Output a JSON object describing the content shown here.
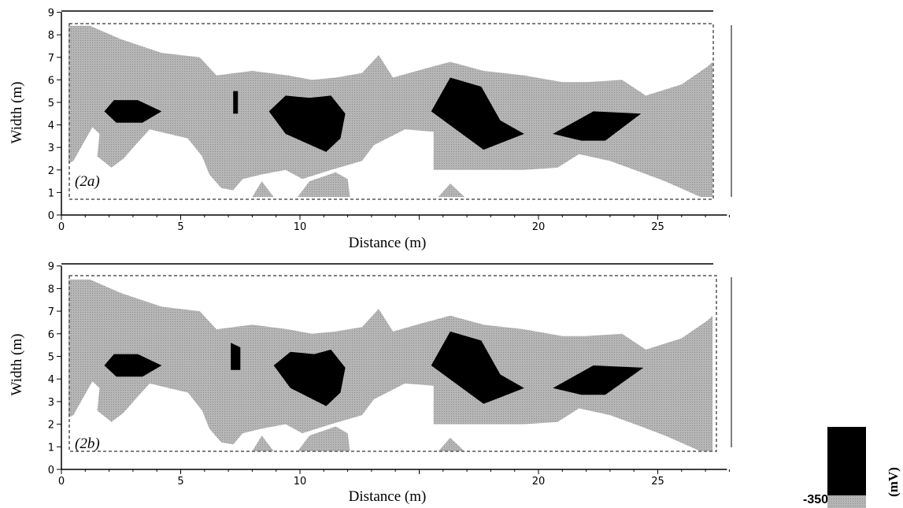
{
  "chart_data": [
    {
      "type": "contour",
      "panel_label": "(2a)",
      "xlabel": "Distance (m)",
      "ylabel": "Width (m)",
      "xlim": [
        0,
        28
      ],
      "ylim": [
        0,
        9
      ],
      "xticks": [
        0,
        5,
        10,
        20,
        25
      ],
      "yticks": [
        0,
        1,
        2,
        3,
        4,
        5,
        6,
        7,
        8,
        9
      ],
      "survey_area": {
        "x": [
          0.3,
          27.3
        ],
        "y": [
          0.8,
          8.4
        ]
      },
      "colors": {
        "black_zone": "#000000",
        "grey_zone": "#b0b0b0",
        "background": "#ffffff"
      },
      "black_zones": [
        [
          [
            1.8,
            4.6
          ],
          [
            2.2,
            5.1
          ],
          [
            3.2,
            5.1
          ],
          [
            4.2,
            4.6
          ],
          [
            3.4,
            4.1
          ],
          [
            2.3,
            4.1
          ]
        ],
        [
          [
            7.2,
            5.5
          ],
          [
            7.4,
            5.5
          ],
          [
            7.4,
            4.5
          ],
          [
            7.2,
            4.5
          ]
        ],
        [
          [
            8.7,
            4.6
          ],
          [
            9.4,
            5.3
          ],
          [
            10.4,
            5.2
          ],
          [
            11.3,
            5.3
          ],
          [
            11.9,
            4.5
          ],
          [
            11.7,
            3.4
          ],
          [
            11.1,
            2.8
          ],
          [
            9.4,
            3.6
          ]
        ],
        [
          [
            15.5,
            4.6
          ],
          [
            16.3,
            6.1
          ],
          [
            17.6,
            5.7
          ],
          [
            18.4,
            4.2
          ],
          [
            19.4,
            3.6
          ],
          [
            17.7,
            2.9
          ]
        ],
        [
          [
            20.6,
            3.6
          ],
          [
            22.3,
            4.6
          ],
          [
            24.3,
            4.5
          ],
          [
            22.8,
            3.3
          ],
          [
            21.8,
            3.3
          ]
        ]
      ],
      "grey_zone": [
        [
          0.3,
          8.4
        ],
        [
          1.2,
          8.4
        ],
        [
          2.5,
          7.8
        ],
        [
          4.2,
          7.2
        ],
        [
          5.8,
          7.0
        ],
        [
          6.5,
          6.2
        ],
        [
          8.0,
          6.4
        ],
        [
          9.5,
          6.2
        ],
        [
          10.5,
          6.0
        ],
        [
          11.5,
          6.1
        ],
        [
          12.6,
          6.3
        ],
        [
          13.3,
          7.1
        ],
        [
          13.9,
          6.1
        ],
        [
          14.9,
          6.4
        ],
        [
          16.3,
          6.8
        ],
        [
          17.7,
          6.4
        ],
        [
          19.4,
          6.2
        ],
        [
          21.0,
          5.9
        ],
        [
          22.0,
          5.9
        ],
        [
          23.5,
          6.0
        ],
        [
          24.5,
          5.3
        ],
        [
          26.0,
          5.8
        ],
        [
          27.1,
          6.6
        ],
        [
          27.3,
          6.8
        ],
        [
          27.3,
          0.8
        ],
        [
          26.8,
          0.8
        ],
        [
          25.3,
          1.5
        ],
        [
          24.3,
          1.9
        ],
        [
          23.0,
          2.4
        ],
        [
          21.7,
          2.7
        ],
        [
          20.8,
          2.1
        ],
        [
          19.4,
          2.0
        ],
        [
          17.0,
          2.0
        ],
        [
          15.6,
          2.0
        ],
        [
          15.6,
          3.7
        ],
        [
          14.4,
          3.8
        ],
        [
          13.1,
          3.1
        ],
        [
          12.6,
          2.4
        ],
        [
          11.3,
          2.0
        ],
        [
          10.1,
          1.6
        ],
        [
          9.4,
          2.0
        ],
        [
          8.4,
          1.8
        ],
        [
          7.6,
          1.6
        ],
        [
          7.2,
          1.1
        ],
        [
          6.7,
          1.2
        ],
        [
          6.2,
          1.8
        ],
        [
          5.9,
          2.6
        ],
        [
          5.3,
          3.4
        ],
        [
          4.5,
          3.6
        ],
        [
          3.7,
          3.8
        ],
        [
          3.1,
          3.1
        ],
        [
          2.6,
          2.5
        ],
        [
          2.1,
          2.1
        ],
        [
          1.5,
          2.6
        ],
        [
          1.6,
          3.6
        ],
        [
          1.3,
          3.9
        ],
        [
          0.5,
          2.4
        ],
        [
          0.3,
          2.3
        ]
      ],
      "grey_patches": [
        [
          [
            8.0,
            0.8
          ],
          [
            8.4,
            1.5
          ],
          [
            8.9,
            0.8
          ]
        ],
        [
          [
            9.9,
            0.8
          ],
          [
            10.4,
            1.5
          ],
          [
            11.5,
            1.9
          ],
          [
            12.0,
            1.6
          ],
          [
            12.1,
            0.8
          ]
        ],
        [
          [
            15.8,
            0.8
          ],
          [
            16.3,
            1.4
          ],
          [
            16.9,
            0.8
          ]
        ]
      ]
    },
    {
      "type": "contour",
      "panel_label": "(2b)",
      "xlabel": "Distance (m)",
      "ylabel": "Width (m)",
      "xlim": [
        0,
        28
      ],
      "ylim": [
        0,
        9
      ],
      "xticks": [
        0,
        5,
        10,
        20,
        25
      ],
      "yticks": [
        0,
        1,
        2,
        3,
        4,
        5,
        6,
        7,
        8,
        9
      ],
      "survey_area": {
        "x": [
          0.3,
          27.3
        ],
        "y": [
          0.8,
          8.4
        ]
      },
      "colors": {
        "black_zone": "#000000",
        "grey_zone": "#b0b0b0",
        "background": "#ffffff"
      },
      "black_zones": [
        [
          [
            1.8,
            4.6
          ],
          [
            2.2,
            5.1
          ],
          [
            3.2,
            5.1
          ],
          [
            4.2,
            4.6
          ],
          [
            3.4,
            4.1
          ],
          [
            2.3,
            4.1
          ]
        ],
        [
          [
            7.1,
            5.6
          ],
          [
            7.5,
            5.4
          ],
          [
            7.5,
            4.4
          ],
          [
            7.1,
            4.4
          ]
        ],
        [
          [
            8.9,
            4.6
          ],
          [
            9.6,
            5.2
          ],
          [
            10.6,
            5.1
          ],
          [
            11.3,
            5.3
          ],
          [
            11.9,
            4.5
          ],
          [
            11.7,
            3.4
          ],
          [
            11.1,
            2.8
          ],
          [
            9.6,
            3.6
          ]
        ],
        [
          [
            15.5,
            4.6
          ],
          [
            16.3,
            6.1
          ],
          [
            17.6,
            5.7
          ],
          [
            18.4,
            4.2
          ],
          [
            19.4,
            3.6
          ],
          [
            17.7,
            2.9
          ]
        ],
        [
          [
            20.6,
            3.6
          ],
          [
            22.3,
            4.6
          ],
          [
            24.4,
            4.5
          ],
          [
            22.8,
            3.3
          ],
          [
            21.8,
            3.3
          ]
        ]
      ],
      "grey_zone": [
        [
          0.3,
          8.4
        ],
        [
          1.2,
          8.4
        ],
        [
          2.5,
          7.8
        ],
        [
          4.2,
          7.2
        ],
        [
          5.8,
          7.0
        ],
        [
          6.5,
          6.2
        ],
        [
          8.0,
          6.4
        ],
        [
          9.5,
          6.2
        ],
        [
          10.5,
          6.0
        ],
        [
          11.5,
          6.1
        ],
        [
          12.6,
          6.3
        ],
        [
          13.3,
          7.1
        ],
        [
          13.9,
          6.1
        ],
        [
          14.9,
          6.4
        ],
        [
          16.3,
          6.8
        ],
        [
          17.7,
          6.4
        ],
        [
          19.4,
          6.2
        ],
        [
          21.0,
          5.9
        ],
        [
          22.0,
          5.9
        ],
        [
          23.5,
          6.0
        ],
        [
          24.5,
          5.3
        ],
        [
          26.0,
          5.8
        ],
        [
          27.1,
          6.6
        ],
        [
          27.3,
          6.8
        ],
        [
          27.3,
          0.8
        ],
        [
          26.8,
          0.8
        ],
        [
          25.3,
          1.5
        ],
        [
          24.3,
          1.9
        ],
        [
          23.0,
          2.4
        ],
        [
          21.7,
          2.7
        ],
        [
          20.8,
          2.1
        ],
        [
          19.4,
          2.0
        ],
        [
          17.0,
          2.0
        ],
        [
          15.6,
          2.0
        ],
        [
          15.6,
          3.7
        ],
        [
          14.4,
          3.8
        ],
        [
          13.1,
          3.1
        ],
        [
          12.6,
          2.4
        ],
        [
          11.3,
          2.0
        ],
        [
          10.1,
          1.6
        ],
        [
          9.4,
          2.0
        ],
        [
          8.4,
          1.8
        ],
        [
          7.6,
          1.6
        ],
        [
          7.2,
          1.1
        ],
        [
          6.7,
          1.2
        ],
        [
          6.2,
          1.8
        ],
        [
          5.9,
          2.6
        ],
        [
          5.3,
          3.4
        ],
        [
          4.5,
          3.6
        ],
        [
          3.7,
          3.8
        ],
        [
          3.1,
          3.1
        ],
        [
          2.6,
          2.5
        ],
        [
          2.1,
          2.1
        ],
        [
          1.5,
          2.6
        ],
        [
          1.6,
          3.6
        ],
        [
          1.3,
          3.9
        ],
        [
          0.5,
          2.4
        ],
        [
          0.3,
          2.3
        ]
      ],
      "grey_patches": [
        [
          [
            8.0,
            0.8
          ],
          [
            8.4,
            1.5
          ],
          [
            8.9,
            0.8
          ]
        ],
        [
          [
            9.9,
            0.8
          ],
          [
            10.4,
            1.5
          ],
          [
            11.5,
            1.9
          ],
          [
            12.0,
            1.6
          ],
          [
            12.1,
            0.8
          ]
        ],
        [
          [
            15.8,
            0.8
          ],
          [
            16.3,
            1.4
          ],
          [
            16.9,
            0.8
          ]
        ]
      ]
    }
  ],
  "colorbar": {
    "tick_label": "-350",
    "unit_label": "(mV)",
    "colors": [
      "#000000",
      "#b0b0b0"
    ]
  }
}
